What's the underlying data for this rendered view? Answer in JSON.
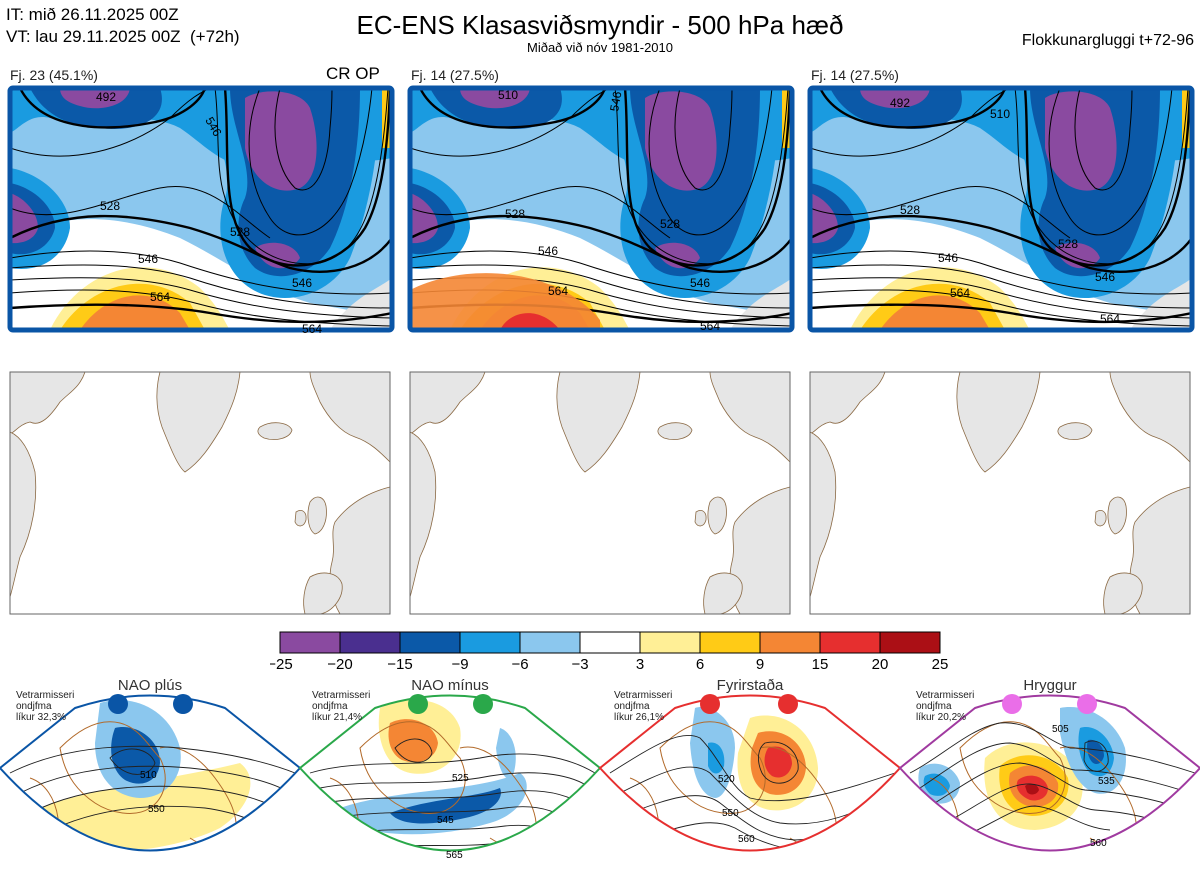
{
  "header": {
    "it_line": "IT: mið 26.11.2025 00Z",
    "vt_line": "VT: lau 29.11.2025 00Z  (+72h)",
    "title": "EC-ENS Klasasviðsmyndir - 500 hPa hæð",
    "subtitle": "Miðað við nóv 1981-2010",
    "window": "Flokkunargluggi t+72-96"
  },
  "clusters": [
    {
      "label": "Fj. 23 (45.1%)",
      "tag": "CR OP",
      "contours": [
        "492",
        "546",
        "528",
        "528",
        "546",
        "564",
        "546",
        "564"
      ]
    },
    {
      "label": "Fj. 14 (27.5%)",
      "tag": "",
      "contours": [
        "510",
        "546",
        "528",
        "528",
        "546",
        "564",
        "546",
        "564"
      ]
    },
    {
      "label": "Fj. 14 (27.5%)",
      "tag": "",
      "contours": [
        "492",
        "510",
        "528",
        "528",
        "546",
        "564",
        "546",
        "564"
      ]
    }
  ],
  "colors": {
    "frame": "#0a55a6",
    "land": "#e6e6e6",
    "coast": "#8b6a45"
  },
  "colorbar": {
    "ticks": [
      "−25",
      "−20",
      "−15",
      "−9",
      "−6",
      "−3",
      "3",
      "6",
      "9",
      "15",
      "20",
      "25"
    ],
    "colors": [
      "#8a4aa0",
      "#4a2f8f",
      "#0b59a8",
      "#1a9be0",
      "#8bc7ee",
      "#ffffff",
      "#ffef96",
      "#ffcb16",
      "#f48634",
      "#e62f2f",
      "#ab0f15"
    ]
  },
  "regimes": [
    {
      "name": "NAO plús",
      "prob_lines": [
        "Vetrarmisseri",
        "ondjfma",
        "líkur 32,3%"
      ],
      "color": "#0a55a6",
      "contours": [
        "510",
        "550"
      ]
    },
    {
      "name": "NAO mínus",
      "prob_lines": [
        "Vetrarmisseri",
        "ondjfma",
        "líkur 21,4%"
      ],
      "color": "#2aa84a",
      "contours": [
        "525",
        "545",
        "565"
      ]
    },
    {
      "name": "Fyrirstaða",
      "prob_lines": [
        "Vetrarmisseri",
        "ondjfma",
        "líkur 26,1%"
      ],
      "color": "#e62f2f",
      "contours": [
        "520",
        "550",
        "560"
      ]
    },
    {
      "name": "Hryggur",
      "prob_lines": [
        "Vetrarmisseri",
        "ondjfma",
        "líkur 20,2%"
      ],
      "color": "#a03aa0",
      "contours": [
        "505",
        "535",
        "560"
      ]
    }
  ]
}
